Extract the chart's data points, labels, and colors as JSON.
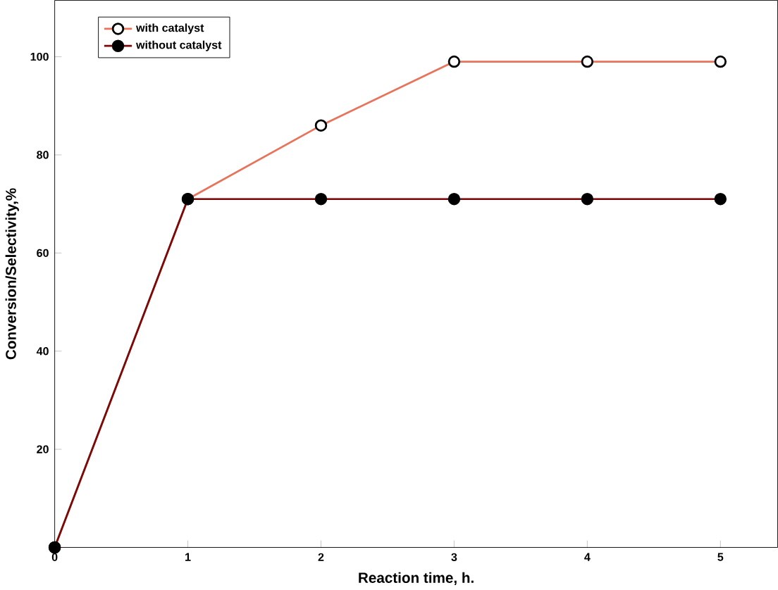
{
  "chart_data": {
    "type": "line",
    "xlabel": "Reaction time, h.",
    "ylabel": "Conversion/Selectivity,%",
    "x": [
      0,
      1,
      2,
      3,
      4,
      5
    ],
    "series": [
      {
        "name": "with catalyst",
        "color": "#e8735a",
        "values": [
          0,
          71,
          86,
          99,
          99,
          99
        ]
      },
      {
        "name": "without catalyst",
        "color": "#7a0a0a",
        "values": [
          0,
          71,
          71,
          71,
          71,
          71
        ]
      }
    ],
    "marker": "circle",
    "xlim": [
      0,
      5.43
    ],
    "ylim": [
      0,
      111.5
    ],
    "xticks": [
      0,
      1,
      2,
      3,
      4,
      5
    ],
    "yticks": [
      20,
      40,
      60,
      80,
      100
    ],
    "legend": "top left",
    "grid": false
  }
}
